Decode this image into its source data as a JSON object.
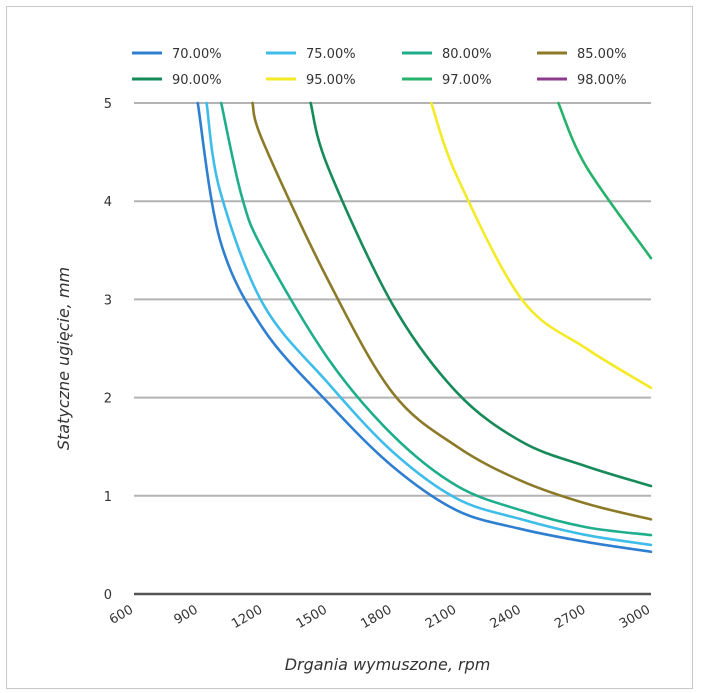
{
  "chart_data": {
    "type": "line",
    "xlabel": "Drgania wymuszone, rpm",
    "ylabel": "Statyczne ugięcie, mm",
    "xlim": [
      600,
      3000
    ],
    "ylim": [
      0,
      5
    ],
    "x_ticks": [
      "600",
      "900",
      "1200",
      "1500",
      "1800",
      "2100",
      "2400",
      "2700",
      "3000"
    ],
    "y_ticks": [
      "0",
      "1",
      "2",
      "3",
      "4",
      "5"
    ],
    "grid": true,
    "legend_position": "top",
    "series": [
      {
        "name": "70.00%",
        "color": "#2f7fd1",
        "x": [
          896,
          1000,
          1200,
          1500,
          1800,
          2100,
          2400,
          2700,
          3000
        ],
        "y": [
          5.0,
          3.6,
          2.7,
          1.95,
          1.3,
          0.85,
          0.66,
          0.53,
          0.43
        ]
      },
      {
        "name": "75.00%",
        "color": "#3fbdea",
        "x": [
          937,
          1000,
          1200,
          1500,
          1800,
          2100,
          2400,
          2700,
          3000
        ],
        "y": [
          5.0,
          4.1,
          2.95,
          2.15,
          1.45,
          0.97,
          0.76,
          0.6,
          0.5
        ]
      },
      {
        "name": "80.00%",
        "color": "#1fae8c",
        "x": [
          1005,
          1100,
          1200,
          1500,
          1800,
          2100,
          2400,
          2700,
          3000
        ],
        "y": [
          5.0,
          4.05,
          3.5,
          2.4,
          1.62,
          1.1,
          0.85,
          0.68,
          0.6
        ]
      },
      {
        "name": "85.00%",
        "color": "#8c7a28",
        "x": [
          1150,
          1200,
          1500,
          1800,
          2100,
          2400,
          2700,
          3000
        ],
        "y": [
          5.0,
          4.6,
          3.2,
          2.05,
          1.5,
          1.15,
          0.92,
          0.76
        ]
      },
      {
        "name": "90.00%",
        "color": "#178a5a",
        "x": [
          1420,
          1500,
          1800,
          2100,
          2400,
          2700,
          3000
        ],
        "y": [
          5.0,
          4.35,
          2.95,
          2.05,
          1.55,
          1.3,
          1.1
        ]
      },
      {
        "name": "95.00%",
        "color": "#f4ea25",
        "x": [
          1980,
          2100,
          2400,
          2700,
          3000
        ],
        "y": [
          5.0,
          4.25,
          3.0,
          2.5,
          2.1
        ]
      },
      {
        "name": "97.00%",
        "color": "#26b26a",
        "x": [
          2570,
          2700,
          3000
        ],
        "y": [
          5.0,
          4.35,
          3.42
        ]
      },
      {
        "name": "98.00%",
        "color": "#8b3a8c",
        "x": [],
        "y": []
      }
    ]
  }
}
